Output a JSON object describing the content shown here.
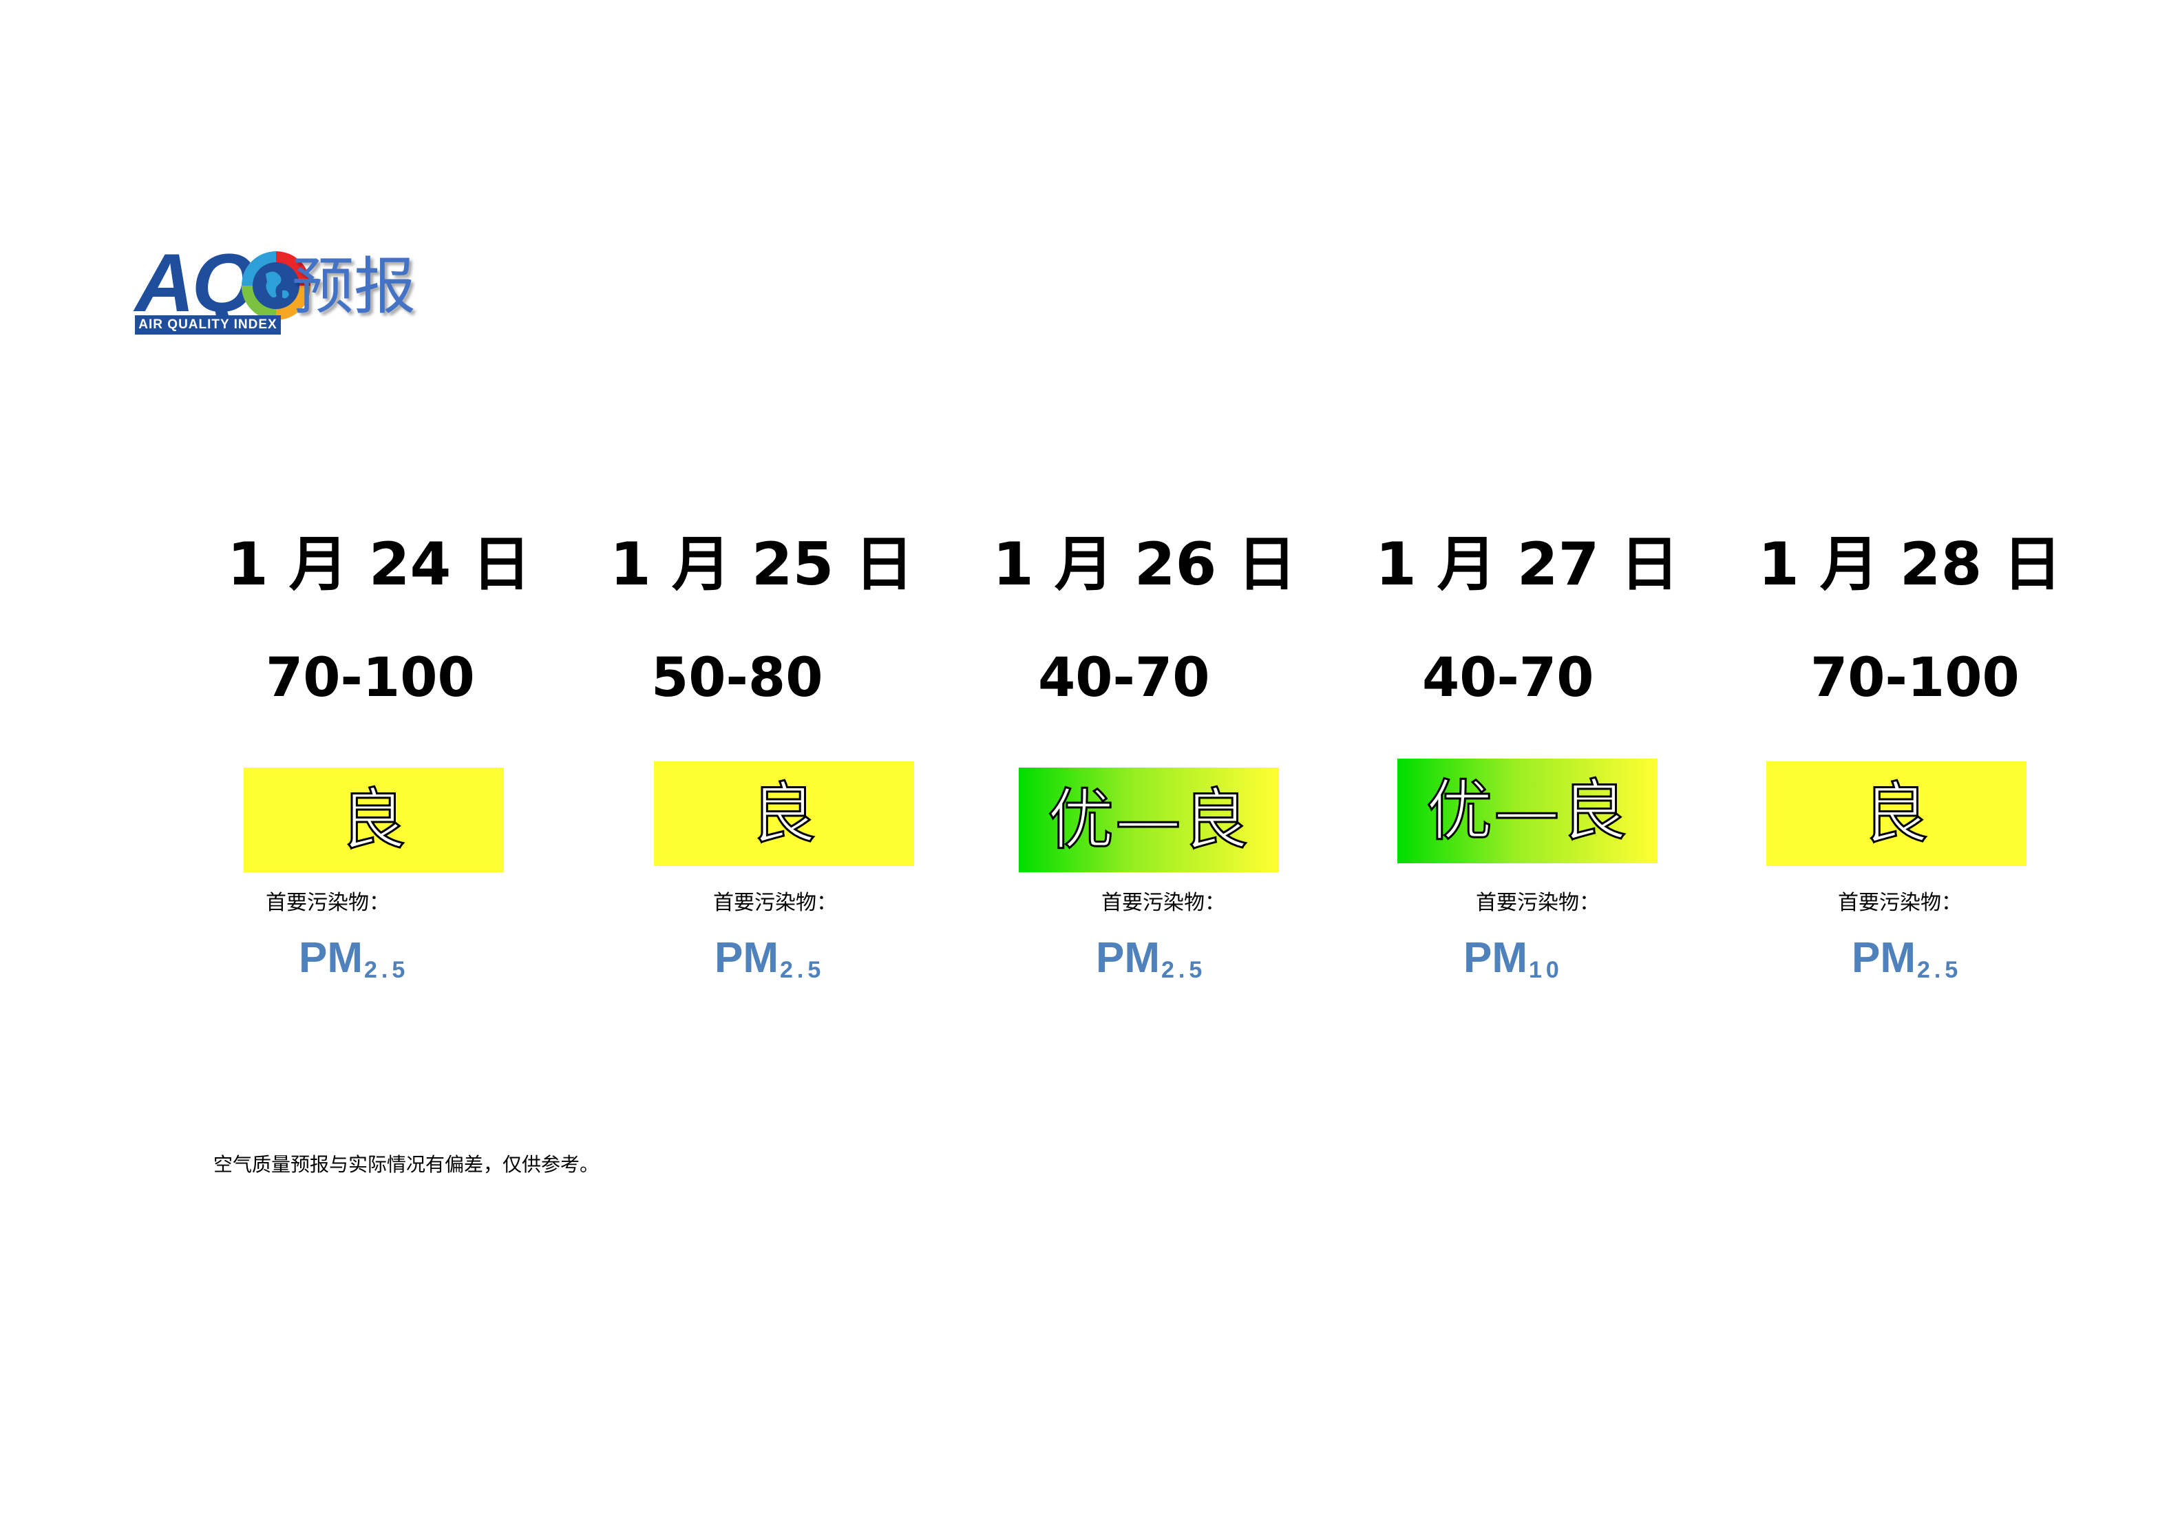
{
  "logo": {
    "letters": "AQI",
    "subtitle": "AIR QUALITY INDEX",
    "title": "预报"
  },
  "forecast": [
    {
      "date": "1 月 24 日",
      "range": "70-100",
      "level": "良",
      "style": "yellow",
      "pollutant_label": "首要污染物：",
      "pollutant": {
        "main": "PM",
        "sub": "2.5"
      }
    },
    {
      "date": "1 月 25 日",
      "range": "50-80",
      "level": "良",
      "style": "yellow",
      "pollutant_label": "首要污染物：",
      "pollutant": {
        "main": "PM",
        "sub": "2.5"
      }
    },
    {
      "date": "1 月 26 日",
      "range": "40-70",
      "level": "优—良",
      "style": "gradient",
      "pollutant_label": "首要污染物：",
      "pollutant": {
        "main": "PM",
        "sub": "2.5"
      }
    },
    {
      "date": "1 月 27 日",
      "range": "40-70",
      "level": "优—良",
      "style": "gradient",
      "pollutant_label": "首要污染物：",
      "pollutant": {
        "main": "PM",
        "sub": "10"
      }
    },
    {
      "date": "1 月 28 日",
      "range": "70-100",
      "level": "良",
      "style": "yellow",
      "pollutant_label": "首要污染物：",
      "pollutant": {
        "main": "PM",
        "sub": "2.5"
      }
    }
  ],
  "disclaimer": "空气质量预报与实际情况有偏差，仅供参考。",
  "colors": {
    "logo_blue": "#1f4e9c",
    "title_blue": "#4472c4",
    "pollutant_blue": "#4f81bd",
    "good_yellow": "#ffff33",
    "excellent_green": "#00dd00"
  }
}
